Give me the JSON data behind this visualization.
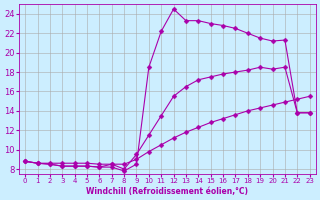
{
  "xlabel": "Windchill (Refroidissement éolien,°C)",
  "ylabel": "",
  "bg_color": "#cceeff",
  "line_color": "#aa00aa",
  "grid_color": "#aaaaaa",
  "xlim": [
    -0.5,
    23.5
  ],
  "ylim": [
    7.5,
    25.0
  ],
  "yticks": [
    8,
    10,
    12,
    14,
    16,
    18,
    20,
    22,
    24
  ],
  "xticks": [
    0,
    1,
    2,
    3,
    4,
    5,
    6,
    7,
    8,
    9,
    10,
    11,
    12,
    13,
    14,
    15,
    16,
    17,
    18,
    19,
    20,
    21,
    22,
    23
  ],
  "line1_x": [
    0,
    1,
    2,
    3,
    4,
    5,
    6,
    7,
    8,
    9,
    10,
    11,
    12,
    13,
    14,
    15,
    16,
    17,
    18,
    19,
    20,
    21,
    22,
    23
  ],
  "line1_y": [
    8.8,
    8.6,
    8.6,
    8.6,
    8.6,
    8.6,
    8.5,
    8.5,
    8.5,
    9.0,
    9.8,
    10.5,
    11.2,
    11.8,
    12.3,
    12.8,
    13.2,
    13.6,
    14.0,
    14.3,
    14.6,
    14.9,
    15.2,
    15.5
  ],
  "line2_x": [
    0,
    1,
    2,
    3,
    4,
    5,
    6,
    7,
    8,
    9,
    10,
    11,
    12,
    13,
    14,
    15,
    16,
    17,
    18,
    19,
    20,
    21,
    22,
    23
  ],
  "line2_y": [
    8.8,
    8.6,
    8.5,
    8.3,
    8.3,
    8.3,
    8.2,
    8.5,
    8.0,
    9.5,
    11.5,
    13.5,
    15.5,
    16.5,
    17.2,
    17.5,
    17.8,
    18.0,
    18.2,
    18.5,
    18.3,
    18.5,
    13.8,
    13.8
  ],
  "line3_x": [
    0,
    1,
    2,
    3,
    4,
    5,
    6,
    7,
    8,
    9,
    10,
    11,
    12,
    13,
    14,
    15,
    16,
    17,
    18,
    19,
    20,
    21,
    22,
    23
  ],
  "line3_y": [
    8.8,
    8.6,
    8.5,
    8.3,
    8.3,
    8.3,
    8.2,
    8.2,
    7.8,
    8.5,
    18.5,
    22.2,
    24.5,
    23.3,
    23.3,
    23.0,
    22.8,
    22.5,
    22.0,
    21.5,
    21.2,
    21.3,
    13.8,
    13.8
  ],
  "marker": "D",
  "markersize": 2.5,
  "linewidth": 0.8
}
